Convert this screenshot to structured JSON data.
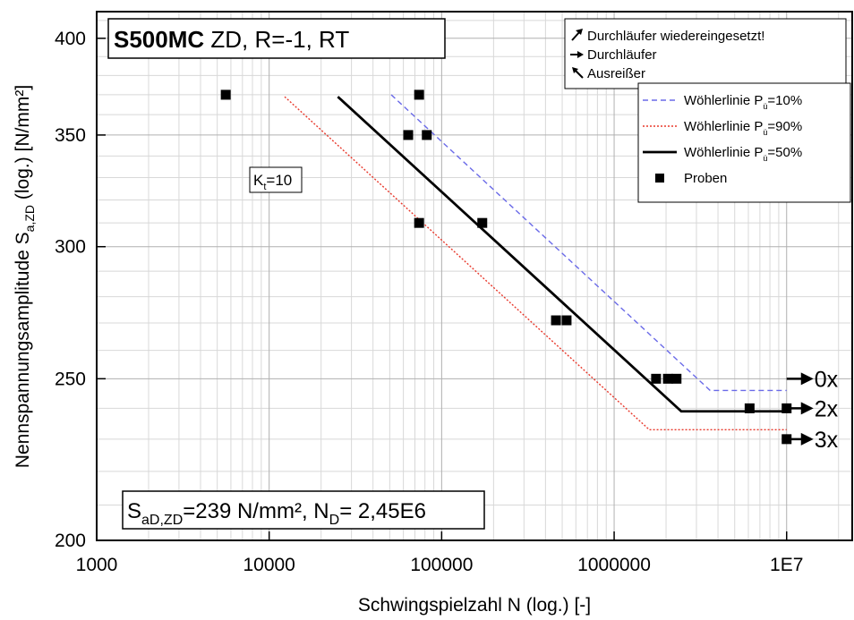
{
  "chart_data": {
    "type": "scatter",
    "title_bold": "S500MC",
    "title_rest": " ZD, R=-1, RT",
    "xlabel": "Schwingspielzahl N (log.) [-]",
    "ylabel_main": "Nennspannungsamplitude  S",
    "ylabel_sub": "a,ZD",
    "ylabel_tail": " (log.) [N/mm²]",
    "x_scale": "log",
    "y_scale": "log",
    "xlim": [
      1000,
      24000000
    ],
    "ylim": [
      200,
      415
    ],
    "x_ticks": [
      1000,
      10000,
      100000,
      1000000,
      10000000
    ],
    "x_tick_labels": [
      "1000",
      "10000",
      "100000",
      "1000000",
      "1E7"
    ],
    "y_ticks": [
      200,
      250,
      300,
      350,
      400
    ],
    "y_tick_labels": [
      "200",
      "250",
      "300",
      "350",
      "400"
    ],
    "grid": true,
    "kt_main": "K",
    "kt_sub": "t",
    "kt_tail": "=10",
    "result_parts": [
      {
        "text": "S",
        "sub": false
      },
      {
        "text": "aD,ZD",
        "sub": true
      },
      {
        "text": "=239 N/mm², N",
        "sub": false
      },
      {
        "text": "D",
        "sub": true
      },
      {
        "text": "= 2,45E6",
        "sub": false
      }
    ],
    "legend_symbols": [
      {
        "label": "Durchläufer wiedereingesetzt!",
        "icon": "arrow-up-right-icon"
      },
      {
        "label": "Durchläufer",
        "icon": "arrow-right-icon"
      },
      {
        "label": "Ausreißer",
        "icon": "arrow-up-left-icon"
      }
    ],
    "series": [
      {
        "name_main": "Wöhlerlinie P",
        "name_sub": "ü",
        "name_tail": "=10%",
        "color": "#6a6ae8",
        "style": "dashed",
        "x": [
          51000,
          3600000,
          10000000
        ],
        "y": [
          370,
          246,
          246
        ]
      },
      {
        "name_main": "Wöhlerlinie P",
        "name_sub": "ü",
        "name_tail": "=90%",
        "color": "#e8392c",
        "style": "dotted",
        "x": [
          12300,
          1600000,
          10000000
        ],
        "y": [
          369,
          233,
          233
        ]
      },
      {
        "name_main": "Wöhlerlinie P",
        "name_sub": "ü",
        "name_tail": "=50%",
        "color": "#000000",
        "style": "solid",
        "x": [
          25000,
          2450000,
          10000000
        ],
        "y": [
          369,
          239,
          239
        ]
      },
      {
        "name_main": "Proben",
        "name_sub": "",
        "name_tail": "",
        "color": "#000000",
        "style": "markers",
        "x": [
          5600,
          74000,
          64000,
          82000,
          74000,
          172000,
          460000,
          530000,
          1750000,
          2050000,
          2300000,
          6100000,
          10000000,
          10000000
        ],
        "y": [
          370,
          370,
          350,
          350,
          310,
          310,
          271,
          271,
          250,
          250,
          250,
          240,
          240,
          230
        ]
      }
    ],
    "runouts": [
      {
        "label": "0x",
        "y": 250
      },
      {
        "label": "2x",
        "y": 240
      },
      {
        "label": "3x",
        "y": 230
      }
    ]
  }
}
